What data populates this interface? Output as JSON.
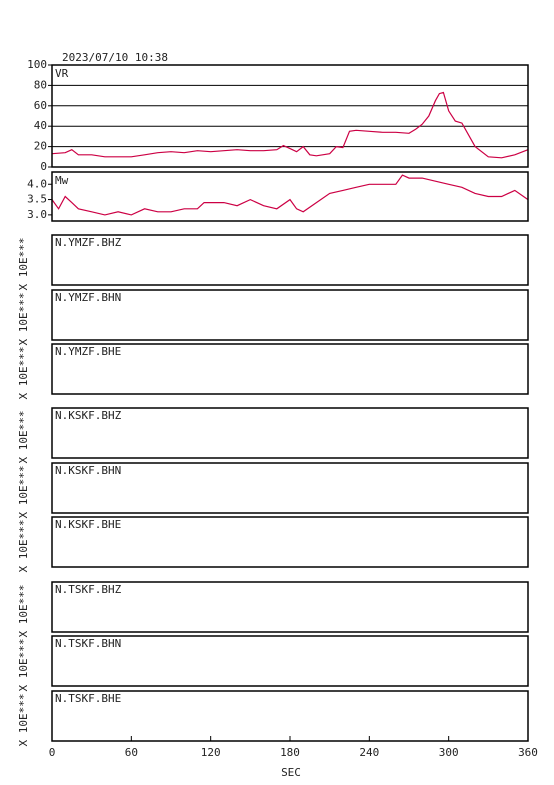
{
  "title": "2023/07/10 10:38",
  "chart_data": [
    {
      "type": "line",
      "label": "VR",
      "color": "#cc0044",
      "grid": true,
      "xlim": [
        0,
        360
      ],
      "ylim": [
        0,
        100
      ],
      "yticks": [
        0,
        20,
        40,
        60,
        80,
        100
      ],
      "x": [
        0,
        10,
        15,
        20,
        30,
        40,
        50,
        60,
        70,
        80,
        90,
        100,
        110,
        120,
        130,
        140,
        150,
        160,
        170,
        175,
        180,
        185,
        190,
        195,
        200,
        210,
        215,
        220,
        225,
        230,
        240,
        250,
        260,
        270,
        275,
        280,
        285,
        290,
        293,
        296,
        300,
        305,
        310,
        320,
        330,
        340,
        350,
        360
      ],
      "values": [
        13,
        14,
        17,
        12,
        12,
        10,
        10,
        10,
        12,
        14,
        15,
        14,
        16,
        15,
        16,
        17,
        16,
        16,
        17,
        21,
        18,
        15,
        20,
        12,
        11,
        13,
        20,
        19,
        35,
        36,
        35,
        34,
        34,
        33,
        37,
        42,
        50,
        65,
        72,
        73,
        55,
        45,
        43,
        20,
        10,
        9,
        12,
        17
      ]
    },
    {
      "type": "line",
      "label": "Mw",
      "color": "#cc0044",
      "grid": false,
      "xlim": [
        0,
        360
      ],
      "ylim": [
        2.8,
        4.4
      ],
      "yticks": [
        {
          "value": 3,
          "label": "3.0"
        },
        3.5,
        {
          "value": 4,
          "label": "4.0"
        }
      ],
      "x": [
        0,
        5,
        10,
        15,
        20,
        30,
        40,
        50,
        60,
        70,
        80,
        90,
        100,
        110,
        115,
        120,
        130,
        140,
        150,
        160,
        170,
        180,
        185,
        190,
        200,
        210,
        220,
        230,
        240,
        250,
        260,
        265,
        270,
        280,
        290,
        300,
        310,
        320,
        330,
        340,
        350,
        360
      ],
      "values": [
        3.5,
        3.2,
        3.6,
        3.4,
        3.2,
        3.1,
        3.0,
        3.1,
        3.0,
        3.2,
        3.1,
        3.1,
        3.2,
        3.2,
        3.4,
        3.4,
        3.4,
        3.3,
        3.5,
        3.3,
        3.2,
        3.5,
        3.2,
        3.1,
        3.4,
        3.7,
        3.8,
        3.9,
        4.0,
        4.0,
        4.0,
        4.3,
        4.2,
        4.2,
        4.1,
        4.0,
        3.9,
        3.7,
        3.6,
        3.6,
        3.8,
        3.5
      ]
    }
  ],
  "waveforms": [
    {
      "name": "N.YMZF.BHZ",
      "scale": "X 10E***"
    },
    {
      "name": "N.YMZF.BHN",
      "scale": "X 10E***"
    },
    {
      "name": "N.YMZF.BHE",
      "scale": "X 10E***"
    },
    {
      "name": "N.KSKF.BHZ",
      "scale": "X 10E***"
    },
    {
      "name": "N.KSKF.BHN",
      "scale": "X 10E***"
    },
    {
      "name": "N.KSKF.BHE",
      "scale": "X 10E***"
    },
    {
      "name": "N.TSKF.BHZ",
      "scale": "X 10E***"
    },
    {
      "name": "N.TSKF.BHN",
      "scale": "X 10E***"
    },
    {
      "name": "N.TSKF.BHE",
      "scale": "X 10E***"
    }
  ],
  "x_axis": {
    "xlim": [
      0,
      360
    ],
    "xticks": [
      0,
      60,
      120,
      180,
      240,
      300,
      360
    ],
    "xlabel": "SEC"
  }
}
